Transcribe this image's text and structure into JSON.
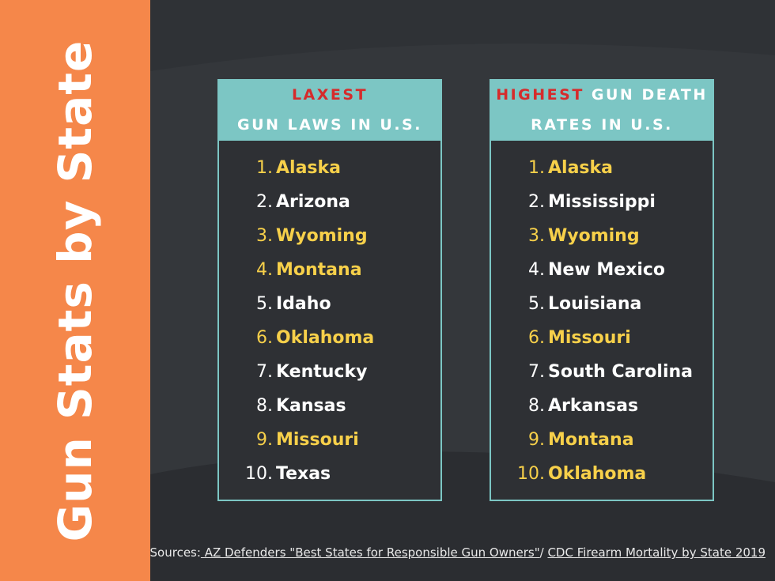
{
  "sidebar": {
    "title": "Gun Stats by State",
    "color": "#f5874a"
  },
  "colors": {
    "background": "#2f3236",
    "accent_teal": "#7cc6c4",
    "highlight_red": "#d62b2b",
    "highlight_yellow": "#f7d04a"
  },
  "left_panel": {
    "header_highlight": "LAXEST",
    "header_line2": "GUN LAWS IN U.S.",
    "items": [
      {
        "num": "1.",
        "name": "Alaska",
        "highlight": true
      },
      {
        "num": "2.",
        "name": "Arizona",
        "highlight": false
      },
      {
        "num": "3.",
        "name": "Wyoming",
        "highlight": true
      },
      {
        "num": "4.",
        "name": "Montana",
        "highlight": true
      },
      {
        "num": "5.",
        "name": "Idaho",
        "highlight": false
      },
      {
        "num": "6.",
        "name": "Oklahoma",
        "highlight": true
      },
      {
        "num": "7.",
        "name": "Kentucky",
        "highlight": false
      },
      {
        "num": "8.",
        "name": "Kansas",
        "highlight": false
      },
      {
        "num": "9.",
        "name": "Missouri",
        "highlight": true
      },
      {
        "num": "10.",
        "name": "Texas",
        "highlight": false
      }
    ]
  },
  "right_panel": {
    "header_highlight": "HIGHEST",
    "header_rest": " GUN DEATH",
    "header_line2": "RATES IN U.S.",
    "items": [
      {
        "num": "1.",
        "name": "Alaska",
        "highlight": true
      },
      {
        "num": "2.",
        "name": "Mississippi",
        "highlight": false
      },
      {
        "num": "3.",
        "name": "Wyoming",
        "highlight": true
      },
      {
        "num": "4.",
        "name": "New Mexico",
        "highlight": false
      },
      {
        "num": "5.",
        "name": "Louisiana",
        "highlight": false
      },
      {
        "num": "6.",
        "name": "Missouri",
        "highlight": true
      },
      {
        "num": "7.",
        "name": "South Carolina",
        "highlight": false
      },
      {
        "num": "8.",
        "name": "Arkansas",
        "highlight": false
      },
      {
        "num": "9.",
        "name": "Montana",
        "highlight": true
      },
      {
        "num": "10.",
        "name": "Oklahoma",
        "highlight": true
      }
    ]
  },
  "sources": {
    "prefix": "Sources:",
    "link1": " AZ Defenders \"Best States for Responsible Gun Owners\"",
    "separator": "/ ",
    "link2": "CDC Firearm Mortality by State 2019"
  }
}
